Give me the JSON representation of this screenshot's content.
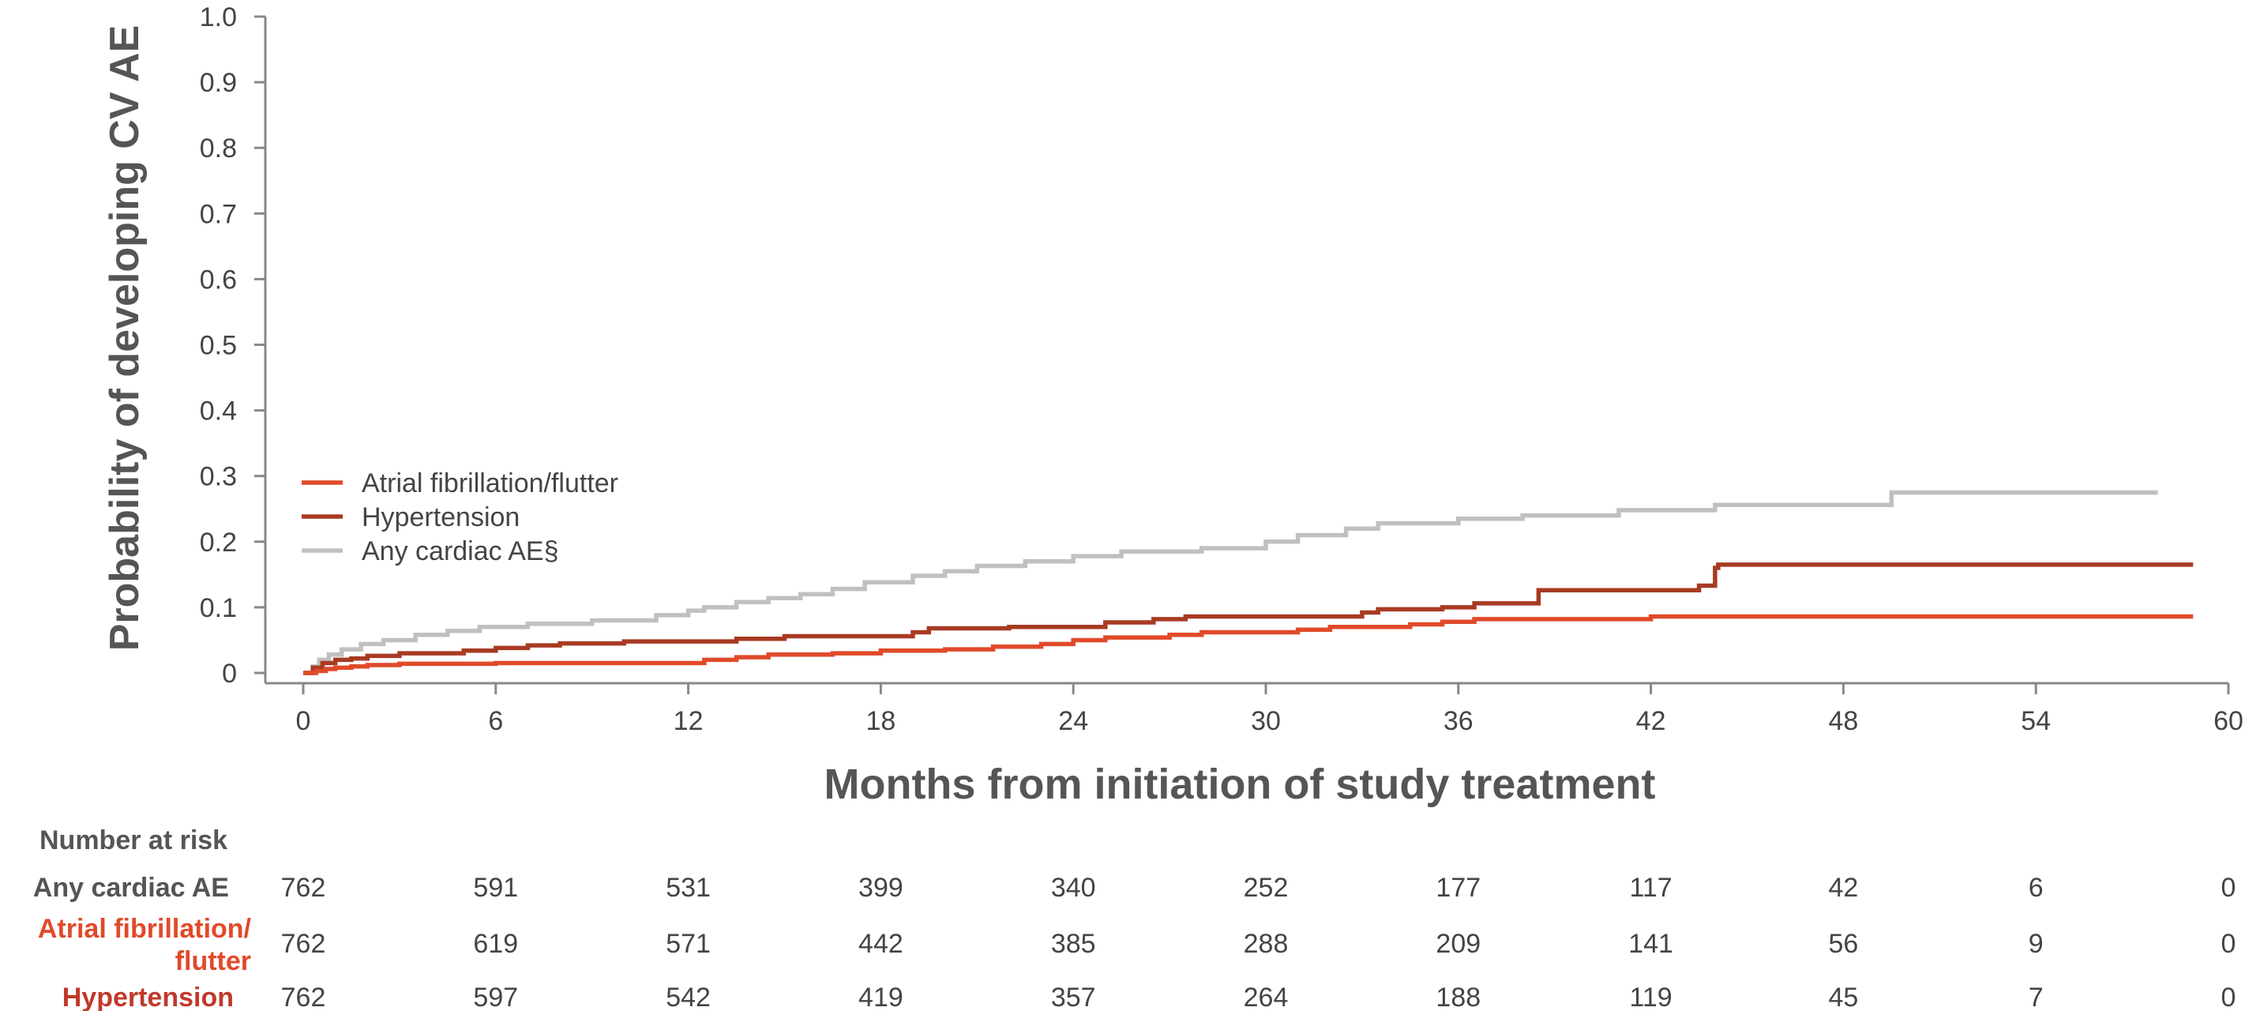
{
  "chart_data": {
    "type": "line",
    "title": "",
    "xlabel": "Months from initiation of study treatment",
    "ylabel": "Probability of developing CV AE",
    "xlim": [
      0,
      60
    ],
    "ylim": [
      0,
      1.0
    ],
    "x_ticks": [
      "0",
      "6",
      "12",
      "18",
      "24",
      "30",
      "36",
      "42",
      "48",
      "54",
      "60"
    ],
    "y_ticks": [
      "0",
      "0.1",
      "0.2",
      "0.3",
      "0.4",
      "0.5",
      "0.6",
      "0.7",
      "0.8",
      "0.9",
      "1.0"
    ],
    "grid": false,
    "legend_position": "center-left",
    "series": [
      {
        "name": "Atrial fibrillation/flutter",
        "color": "#e04a2a",
        "points": [
          [
            0,
            0
          ],
          [
            0.4,
            0.003
          ],
          [
            0.7,
            0.006
          ],
          [
            1.0,
            0.008
          ],
          [
            1.5,
            0.01
          ],
          [
            2.0,
            0.012
          ],
          [
            3.0,
            0.014
          ],
          [
            6,
            0.015
          ],
          [
            12.5,
            0.02
          ],
          [
            13.5,
            0.024
          ],
          [
            14.5,
            0.028
          ],
          [
            16.5,
            0.03
          ],
          [
            18,
            0.034
          ],
          [
            20,
            0.036
          ],
          [
            21.5,
            0.04
          ],
          [
            23,
            0.044
          ],
          [
            24,
            0.05
          ],
          [
            25,
            0.054
          ],
          [
            27,
            0.058
          ],
          [
            28,
            0.062
          ],
          [
            31,
            0.066
          ],
          [
            32,
            0.07
          ],
          [
            34.5,
            0.074
          ],
          [
            35.5,
            0.078
          ],
          [
            36.5,
            0.082
          ],
          [
            42,
            0.086
          ],
          [
            58.9,
            0.086
          ]
        ]
      },
      {
        "name": "Hypertension",
        "color": "#a83a22",
        "points": [
          [
            0,
            0
          ],
          [
            0.3,
            0.008
          ],
          [
            0.6,
            0.015
          ],
          [
            1.0,
            0.02
          ],
          [
            1.5,
            0.022
          ],
          [
            2.0,
            0.026
          ],
          [
            3,
            0.03
          ],
          [
            5,
            0.034
          ],
          [
            6,
            0.038
          ],
          [
            7,
            0.042
          ],
          [
            8,
            0.045
          ],
          [
            10,
            0.048
          ],
          [
            13.5,
            0.052
          ],
          [
            15,
            0.056
          ],
          [
            19,
            0.062
          ],
          [
            19.5,
            0.068
          ],
          [
            22,
            0.07
          ],
          [
            25,
            0.077
          ],
          [
            26.5,
            0.082
          ],
          [
            27.5,
            0.086
          ],
          [
            33,
            0.092
          ],
          [
            33.5,
            0.097
          ],
          [
            35.5,
            0.1
          ],
          [
            36.5,
            0.106
          ],
          [
            38.5,
            0.126
          ],
          [
            43.5,
            0.133
          ],
          [
            44,
            0.16
          ],
          [
            44.1,
            0.165
          ],
          [
            58.9,
            0.165
          ]
        ]
      },
      {
        "name": "Any cardiac AE§",
        "color": "#c0c0c0",
        "points": [
          [
            0,
            0
          ],
          [
            0.3,
            0.01
          ],
          [
            0.5,
            0.02
          ],
          [
            0.8,
            0.028
          ],
          [
            1.2,
            0.036
          ],
          [
            1.8,
            0.044
          ],
          [
            2.5,
            0.05
          ],
          [
            3.5,
            0.058
          ],
          [
            4.5,
            0.064
          ],
          [
            5.5,
            0.07
          ],
          [
            7,
            0.075
          ],
          [
            9,
            0.08
          ],
          [
            11,
            0.088
          ],
          [
            12,
            0.095
          ],
          [
            12.5,
            0.1
          ],
          [
            13.5,
            0.108
          ],
          [
            14.5,
            0.114
          ],
          [
            15.5,
            0.12
          ],
          [
            16.5,
            0.128
          ],
          [
            17.5,
            0.138
          ],
          [
            19,
            0.148
          ],
          [
            20,
            0.155
          ],
          [
            21,
            0.163
          ],
          [
            22.5,
            0.17
          ],
          [
            24,
            0.178
          ],
          [
            25.5,
            0.185
          ],
          [
            28,
            0.19
          ],
          [
            30,
            0.2
          ],
          [
            31,
            0.21
          ],
          [
            32.5,
            0.22
          ],
          [
            33.5,
            0.228
          ],
          [
            36,
            0.235
          ],
          [
            38,
            0.24
          ],
          [
            41,
            0.248
          ],
          [
            44,
            0.256
          ],
          [
            49.5,
            0.275
          ],
          [
            57.8,
            0.275
          ]
        ]
      }
    ],
    "risk_table": {
      "header": "Number at risk",
      "rows": [
        {
          "label": "Any cardiac AE",
          "label_lines": [
            "Any cardiac AE"
          ],
          "color": "#555555",
          "values": [
            "762",
            "591",
            "531",
            "399",
            "340",
            "252",
            "177",
            "117",
            "42",
            "6",
            "0"
          ]
        },
        {
          "label": "Atrial fibrillation/flutter",
          "label_lines": [
            "Atrial fibrillation/",
            "flutter"
          ],
          "color": "#e04a2a",
          "values": [
            "762",
            "619",
            "571",
            "442",
            "385",
            "288",
            "209",
            "141",
            "56",
            "9",
            "0"
          ]
        },
        {
          "label": "Hypertension",
          "label_lines": [
            "Hypertension"
          ],
          "color": "#c0392b",
          "values": [
            "762",
            "597",
            "542",
            "419",
            "357",
            "264",
            "188",
            "119",
            "45",
            "7",
            "0"
          ]
        }
      ]
    }
  }
}
